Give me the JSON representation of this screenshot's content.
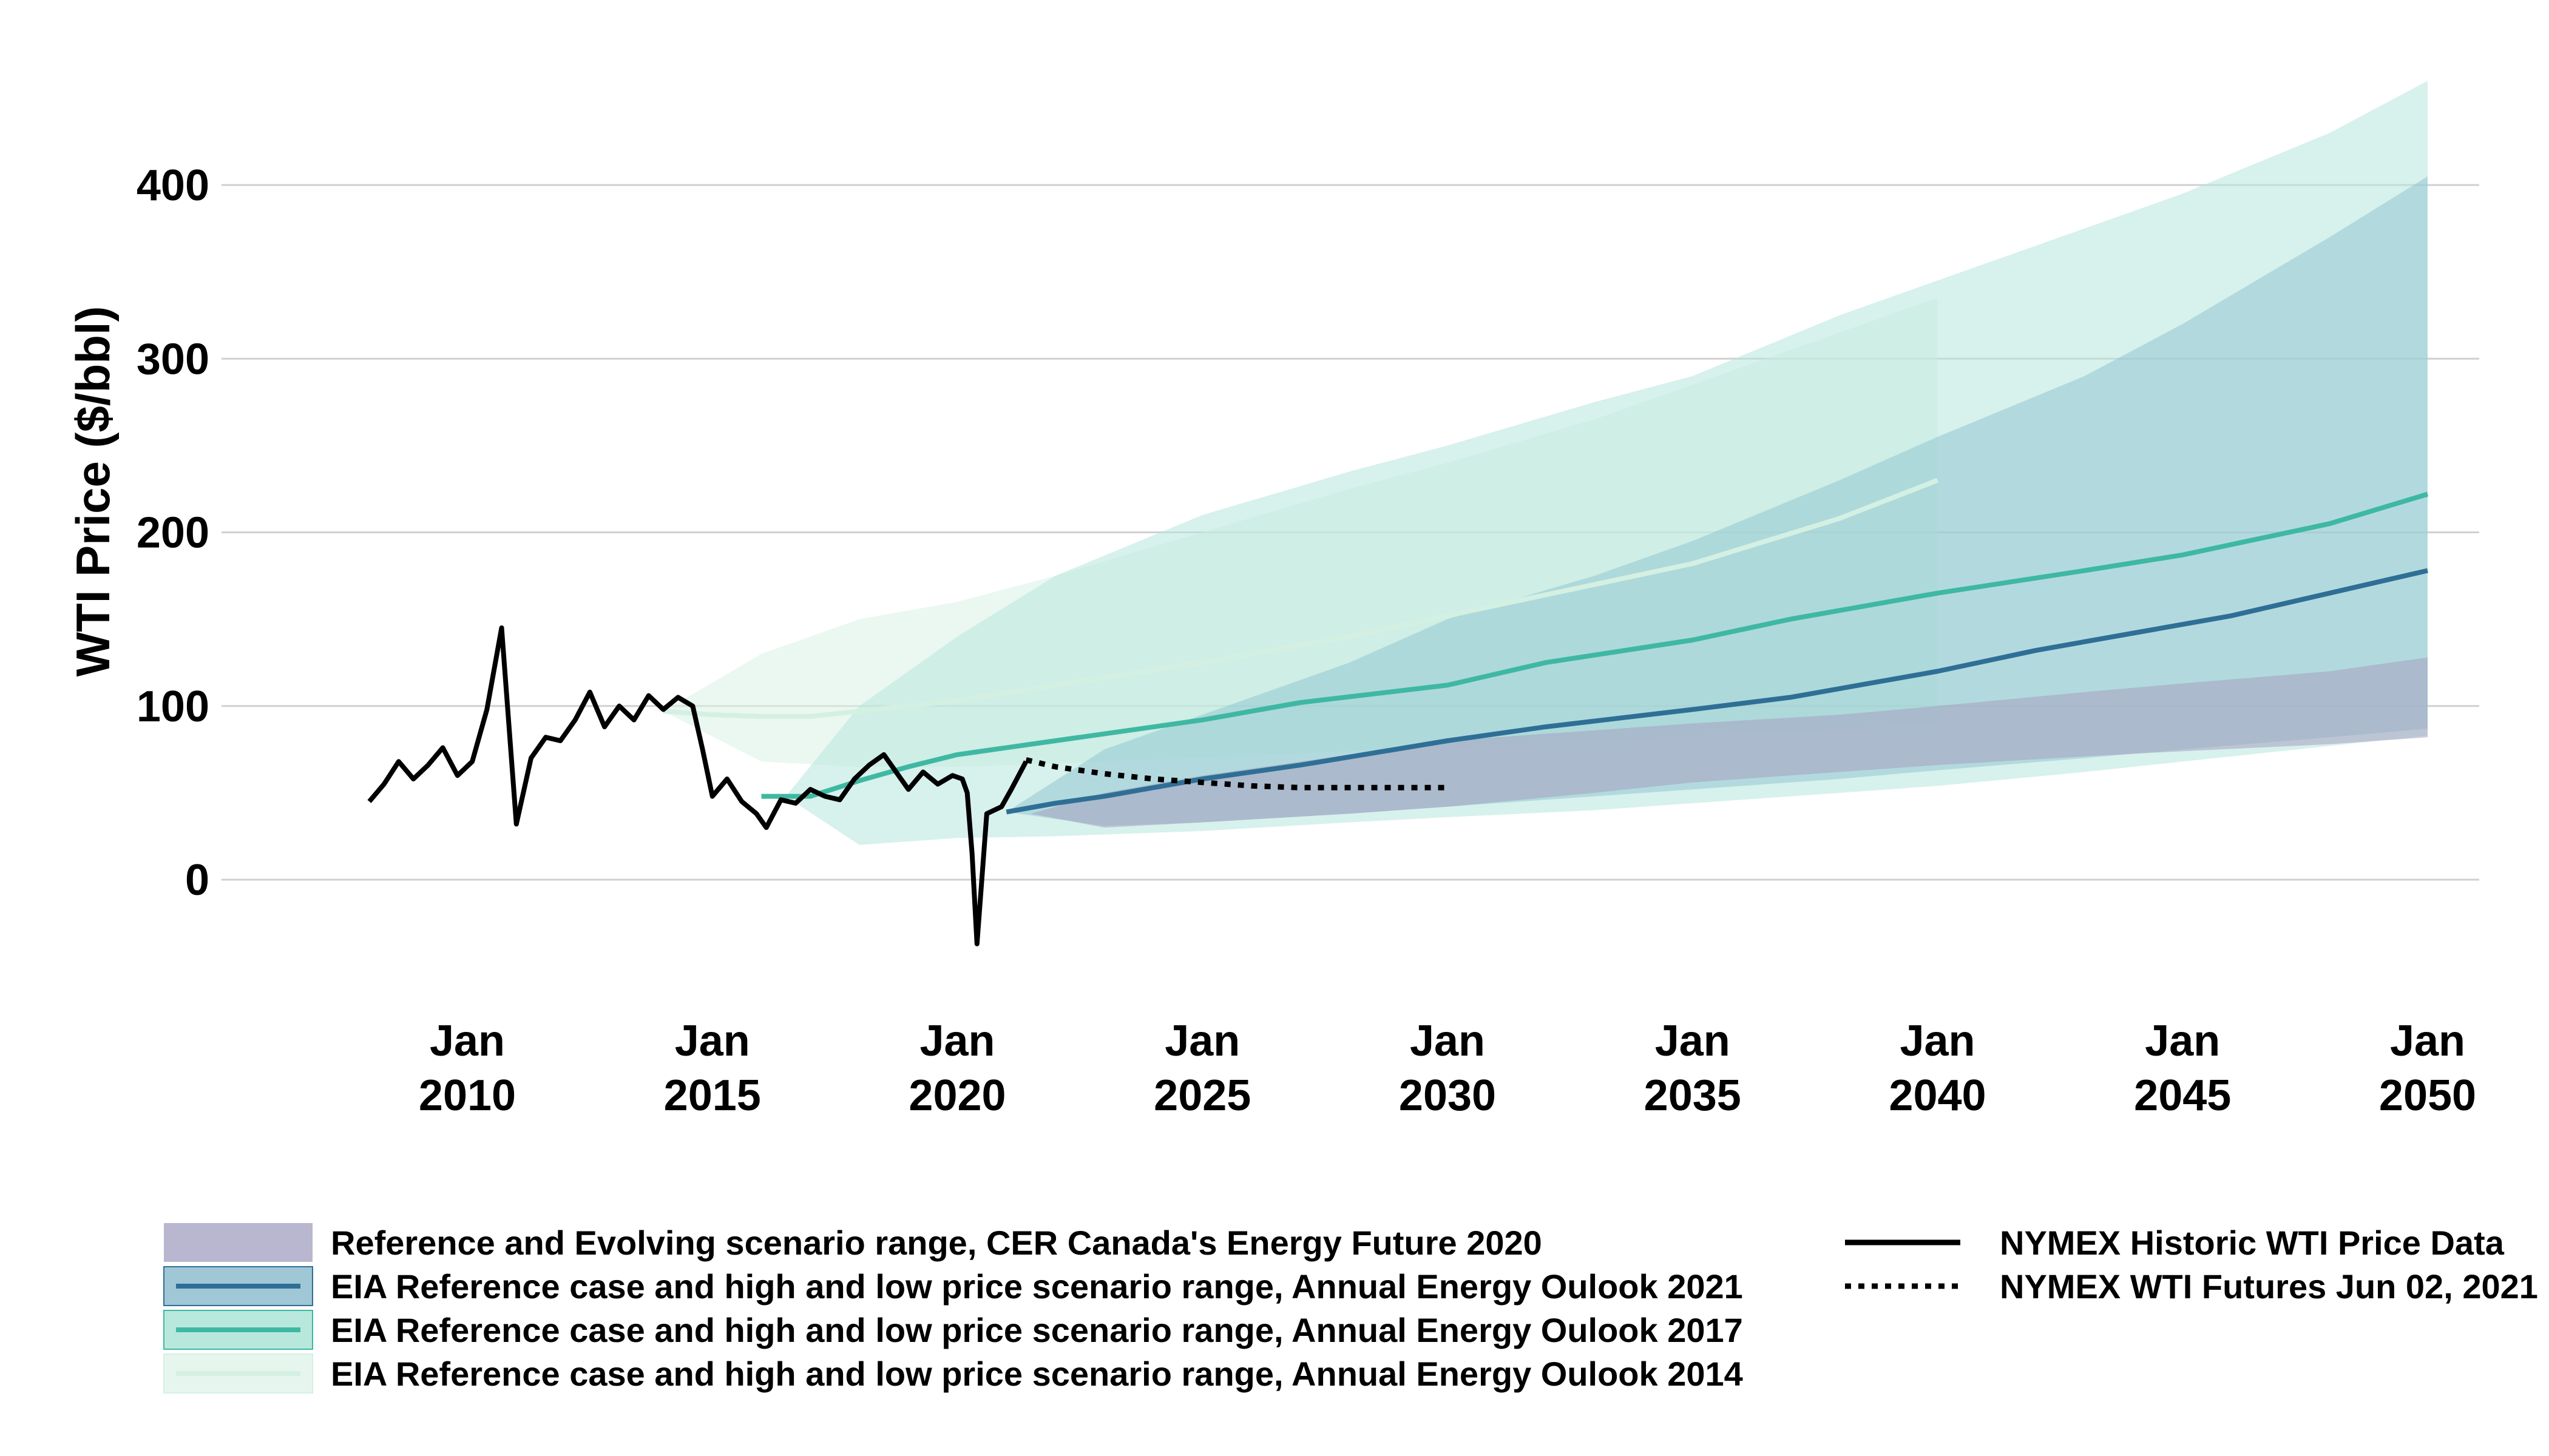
{
  "chart_data": {
    "type": "line",
    "ylabel": "WTI Price ($/bbl)",
    "xlabel": "",
    "ylim": [
      -60,
      470
    ],
    "xlim": [
      2008.0,
      2051.0
    ],
    "yticks": [
      0,
      100,
      200,
      300,
      400
    ],
    "xticks": [
      {
        "year": 2010,
        "label1": "Jan",
        "label2": "2010"
      },
      {
        "year": 2015,
        "label1": "Jan",
        "label2": "2015"
      },
      {
        "year": 2020,
        "label1": "Jan",
        "label2": "2020"
      },
      {
        "year": 2025,
        "label1": "Jan",
        "label2": "2025"
      },
      {
        "year": 2030,
        "label1": "Jan",
        "label2": "2030"
      },
      {
        "year": 2035,
        "label1": "Jan",
        "label2": "2035"
      },
      {
        "year": 2040,
        "label1": "Jan",
        "label2": "2040"
      },
      {
        "year": 2045,
        "label1": "Jan",
        "label2": "2045"
      },
      {
        "year": 2050,
        "label1": "Jan",
        "label2": "2050"
      }
    ],
    "grid": true,
    "legend_position": "bottom",
    "bands": [
      {
        "name": "EIA Reference case and high and low price scenario range, Annual Energy Oulook 2014",
        "color": "#d8f2e6",
        "opacity": 0.55,
        "x": [
          2014.0,
          2016.0,
          2018.0,
          2020.0,
          2022.0,
          2025.0,
          2028.0,
          2030.0,
          2033.0,
          2035.0,
          2038.0,
          2040.0
        ],
        "high": [
          97,
          130,
          150,
          160,
          175,
          200,
          225,
          240,
          265,
          285,
          315,
          335
        ],
        "low": [
          97,
          68,
          65,
          65,
          67,
          70,
          74,
          77,
          80,
          83,
          87,
          90
        ]
      },
      {
        "name": "EIA Reference case and high and low price scenario range, Annual Energy Oulook 2017",
        "color": "#b6e6dc",
        "opacity": 0.55,
        "x": [
          2016.5,
          2018.0,
          2020.0,
          2022.0,
          2025.0,
          2028.0,
          2030.0,
          2033.0,
          2035.0,
          2038.0,
          2040.0,
          2043.0,
          2045.0,
          2048.0,
          2050.0
        ],
        "high": [
          48,
          100,
          140,
          175,
          210,
          235,
          250,
          275,
          290,
          325,
          345,
          375,
          395,
          430,
          460
        ],
        "low": [
          48,
          20,
          24,
          25,
          28,
          33,
          36,
          40,
          44,
          50,
          54,
          62,
          68,
          77,
          83
        ]
      },
      {
        "name": "EIA Reference case and high and low price scenario range, Annual Energy Oulook 2021",
        "color": "#8ec4cf",
        "opacity": 0.5,
        "x": [
          2021.0,
          2023.0,
          2025.0,
          2028.0,
          2030.0,
          2033.0,
          2035.0,
          2038.0,
          2040.0,
          2043.0,
          2045.0,
          2048.0,
          2050.0
        ],
        "high": [
          39,
          75,
          95,
          125,
          150,
          175,
          195,
          230,
          255,
          290,
          320,
          370,
          405
        ],
        "low": [
          39,
          31,
          33,
          38,
          42,
          48,
          52,
          58,
          63,
          70,
          75,
          82,
          87
        ]
      },
      {
        "name": "Reference and Evolving scenario range, CER Canada's Energy Future 2020",
        "color": "#a5a0bf",
        "opacity": 0.55,
        "x": [
          2021.5,
          2023.0,
          2025.0,
          2028.0,
          2030.0,
          2033.0,
          2035.0,
          2038.0,
          2040.0,
          2043.0,
          2045.0,
          2048.0,
          2050.0
        ],
        "high": [
          38,
          50,
          60,
          72,
          80,
          86,
          90,
          95,
          100,
          108,
          113,
          120,
          128
        ],
        "low": [
          38,
          30,
          33,
          38,
          42,
          50,
          56,
          62,
          66,
          71,
          74,
          78,
          82
        ]
      }
    ],
    "series": [
      {
        "name": "EIA Reference case and high and low price scenario range, Annual Energy Oulook 2014",
        "color": "#d4f0e2",
        "style": "solid",
        "x": [
          2014.0,
          2015.0,
          2016.0,
          2017.0,
          2018.0,
          2020.0,
          2022.0,
          2025.0,
          2028.0,
          2030.0,
          2033.0,
          2035.0,
          2038.0,
          2040.0
        ],
        "y": [
          97,
          95,
          94,
          94,
          97,
          103,
          112,
          125,
          140,
          152,
          170,
          182,
          208,
          230
        ]
      },
      {
        "name": "EIA Reference case and high and low price scenario range, Annual Energy Oulook 2017",
        "color": "#3fb8a3",
        "style": "solid",
        "x": [
          2016.0,
          2017.0,
          2018.0,
          2019.0,
          2020.0,
          2022.0,
          2025.0,
          2027.0,
          2030.0,
          2032.0,
          2035.0,
          2037.0,
          2040.0,
          2043.0,
          2045.0,
          2048.0,
          2050.0
        ],
        "y": [
          48,
          48,
          57,
          65,
          72,
          80,
          92,
          102,
          112,
          125,
          138,
          150,
          165,
          178,
          187,
          205,
          222
        ]
      },
      {
        "name": "EIA Reference case and high and low price scenario range, Annual Energy Oulook 2021",
        "color": "#2f6f96",
        "style": "solid",
        "x": [
          2021.0,
          2022.0,
          2023.0,
          2025.0,
          2027.0,
          2030.0,
          2032.0,
          2035.0,
          2037.0,
          2040.0,
          2042.0,
          2044.0,
          2046.0,
          2048.0,
          2050.0
        ],
        "y": [
          39,
          44,
          48,
          58,
          66,
          80,
          88,
          98,
          105,
          120,
          132,
          142,
          152,
          165,
          178
        ]
      },
      {
        "name": "NYMEX WTI Futures Jun 02, 2021",
        "color": "#000000",
        "style": "dotted",
        "x": [
          2021.4,
          2022.0,
          2023.0,
          2024.0,
          2025.0,
          2026.0,
          2027.0,
          2028.0,
          2029.0,
          2030.0
        ],
        "y": [
          69,
          65,
          61,
          58,
          56,
          54,
          53,
          53,
          53,
          53
        ]
      },
      {
        "name": "NYMEX Historic WTI Price Data",
        "color": "#000000",
        "style": "solid",
        "x": [
          2008.0,
          2008.3,
          2008.6,
          2008.9,
          2009.2,
          2009.5,
          2009.8,
          2010.1,
          2010.4,
          2010.7,
          2011.0,
          2011.3,
          2011.6,
          2011.9,
          2012.2,
          2012.5,
          2012.8,
          2013.1,
          2013.4,
          2013.7,
          2014.0,
          2014.3,
          2014.6,
          2014.8,
          2015.0,
          2015.3,
          2015.6,
          2015.9,
          2016.1,
          2016.4,
          2016.7,
          2017.0,
          2017.3,
          2017.6,
          2017.9,
          2018.2,
          2018.5,
          2018.8,
          2019.0,
          2019.3,
          2019.6,
          2019.9,
          2020.1,
          2020.2,
          2020.3,
          2020.4,
          2020.6,
          2020.9,
          2021.1,
          2021.4
        ],
        "y": [
          45,
          55,
          68,
          58,
          66,
          76,
          60,
          68,
          98,
          145,
          32,
          70,
          82,
          80,
          92,
          108,
          88,
          100,
          92,
          106,
          98,
          105,
          100,
          75,
          48,
          58,
          45,
          38,
          30,
          46,
          44,
          52,
          48,
          46,
          58,
          66,
          72,
          60,
          52,
          62,
          55,
          60,
          58,
          50,
          15,
          -37,
          38,
          42,
          52,
          68
        ]
      }
    ],
    "legend": {
      "left": [
        "Reference and Evolving scenario range, CER Canada's Energy Future 2020",
        "EIA Reference case and high and low price scenario range, Annual Energy Oulook 2021",
        "EIA Reference case and high and low price scenario range, Annual Energy Oulook 2017",
        "EIA Reference case and high and low price scenario range, Annual Energy Oulook 2014"
      ],
      "right": [
        "NYMEX Historic WTI Price Data",
        "NYMEX WTI Futures Jun 02, 2021"
      ]
    },
    "colors": {
      "grid": "#d0d0d0",
      "cer_fill": "#b9b6cf",
      "aeo2021_fill": "#9fc7d6",
      "aeo2021_line": "#2f6f96",
      "aeo2017_fill": "#b8e8dc",
      "aeo2017_line": "#3fb8a3",
      "aeo2014_fill": "#e6f6ee",
      "aeo2014_line": "#d4f0e2"
    }
  }
}
